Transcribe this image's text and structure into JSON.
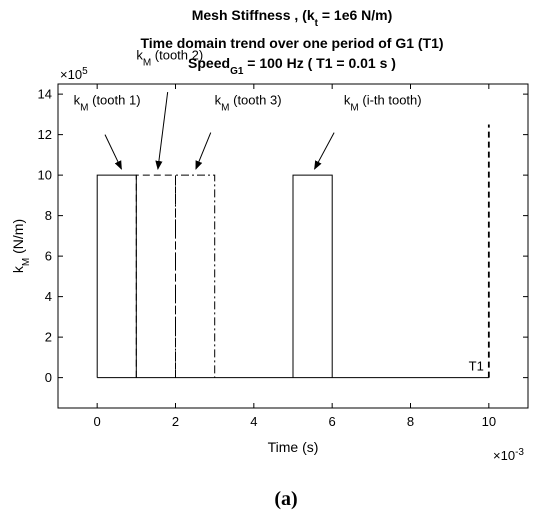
{
  "chart_data": {
    "type": "line",
    "title_lines": [
      {
        "parts": [
          {
            "t": "Mesh Stiffness , (k"
          },
          {
            "t": "t",
            "sub": true
          },
          {
            "t": " = 1e6 N/m)"
          }
        ]
      },
      {
        "parts": [
          {
            "t": "Time domain trend over one period of G1 (T1)"
          }
        ]
      },
      {
        "parts": [
          {
            "t": "Speed"
          },
          {
            "t": "G1",
            "sub": true
          },
          {
            "t": " = 100 Hz  ( T1 = 0.01 s )"
          }
        ]
      }
    ],
    "xlabel": "Time (s)",
    "ylabel_main": "k",
    "ylabel_sub": "M",
    "ylabel_unit": " (N/m)",
    "x_multiplier_base": "×10",
    "x_multiplier_exp": "-3",
    "y_multiplier_base": "×10",
    "y_multiplier_exp": "5",
    "xlim": [
      -1,
      11
    ],
    "ylim": [
      -1.5,
      14.5
    ],
    "xticks": [
      0,
      2,
      4,
      6,
      8,
      10
    ],
    "yticks": [
      0,
      2,
      4,
      6,
      8,
      10,
      12,
      14
    ],
    "grid": false,
    "legend": "none",
    "series": [
      {
        "style": "solid",
        "x": [
          0,
          0,
          1,
          1
        ],
        "y": [
          0,
          10,
          10,
          0
        ]
      },
      {
        "style": "dashed",
        "x": [
          1,
          1,
          2,
          2
        ],
        "y": [
          0,
          10,
          10,
          0
        ]
      },
      {
        "style": "dashdot",
        "x": [
          2,
          2,
          3,
          3
        ],
        "y": [
          0,
          10,
          10,
          0
        ]
      },
      {
        "style": "solid",
        "x": [
          5,
          5,
          6,
          6
        ],
        "y": [
          0,
          10,
          10,
          0
        ]
      },
      {
        "style": "solid",
        "x": [
          0,
          10
        ],
        "y": [
          0,
          0
        ]
      }
    ],
    "period_marker": {
      "x": 10,
      "y_top": 12.5,
      "label": "T1"
    },
    "annotations": [
      {
        "main": "k",
        "sub": "M",
        "rest": " (tooth 1)",
        "text_x": -0.6,
        "text_y": 13.5,
        "arrow_from": [
          0.2,
          12.0
        ],
        "arrow_to": [
          0.62,
          10.3
        ]
      },
      {
        "main": "k",
        "sub": "M",
        "rest": " (tooth 2)",
        "text_x": 1.0,
        "text_y": 15.7,
        "arrow_from": [
          1.8,
          14.1
        ],
        "arrow_to": [
          1.55,
          10.3
        ]
      },
      {
        "main": "k",
        "sub": "M",
        "rest": " (tooth 3)",
        "text_x": 3.0,
        "text_y": 13.5,
        "arrow_from": [
          2.9,
          12.1
        ],
        "arrow_to": [
          2.52,
          10.3
        ]
      },
      {
        "main": "k",
        "sub": "M",
        "rest": " (i-th tooth)",
        "text_x": 6.3,
        "text_y": 13.5,
        "arrow_from": [
          6.05,
          12.1
        ],
        "arrow_to": [
          5.55,
          10.3
        ]
      }
    ]
  },
  "caption": "(a)"
}
